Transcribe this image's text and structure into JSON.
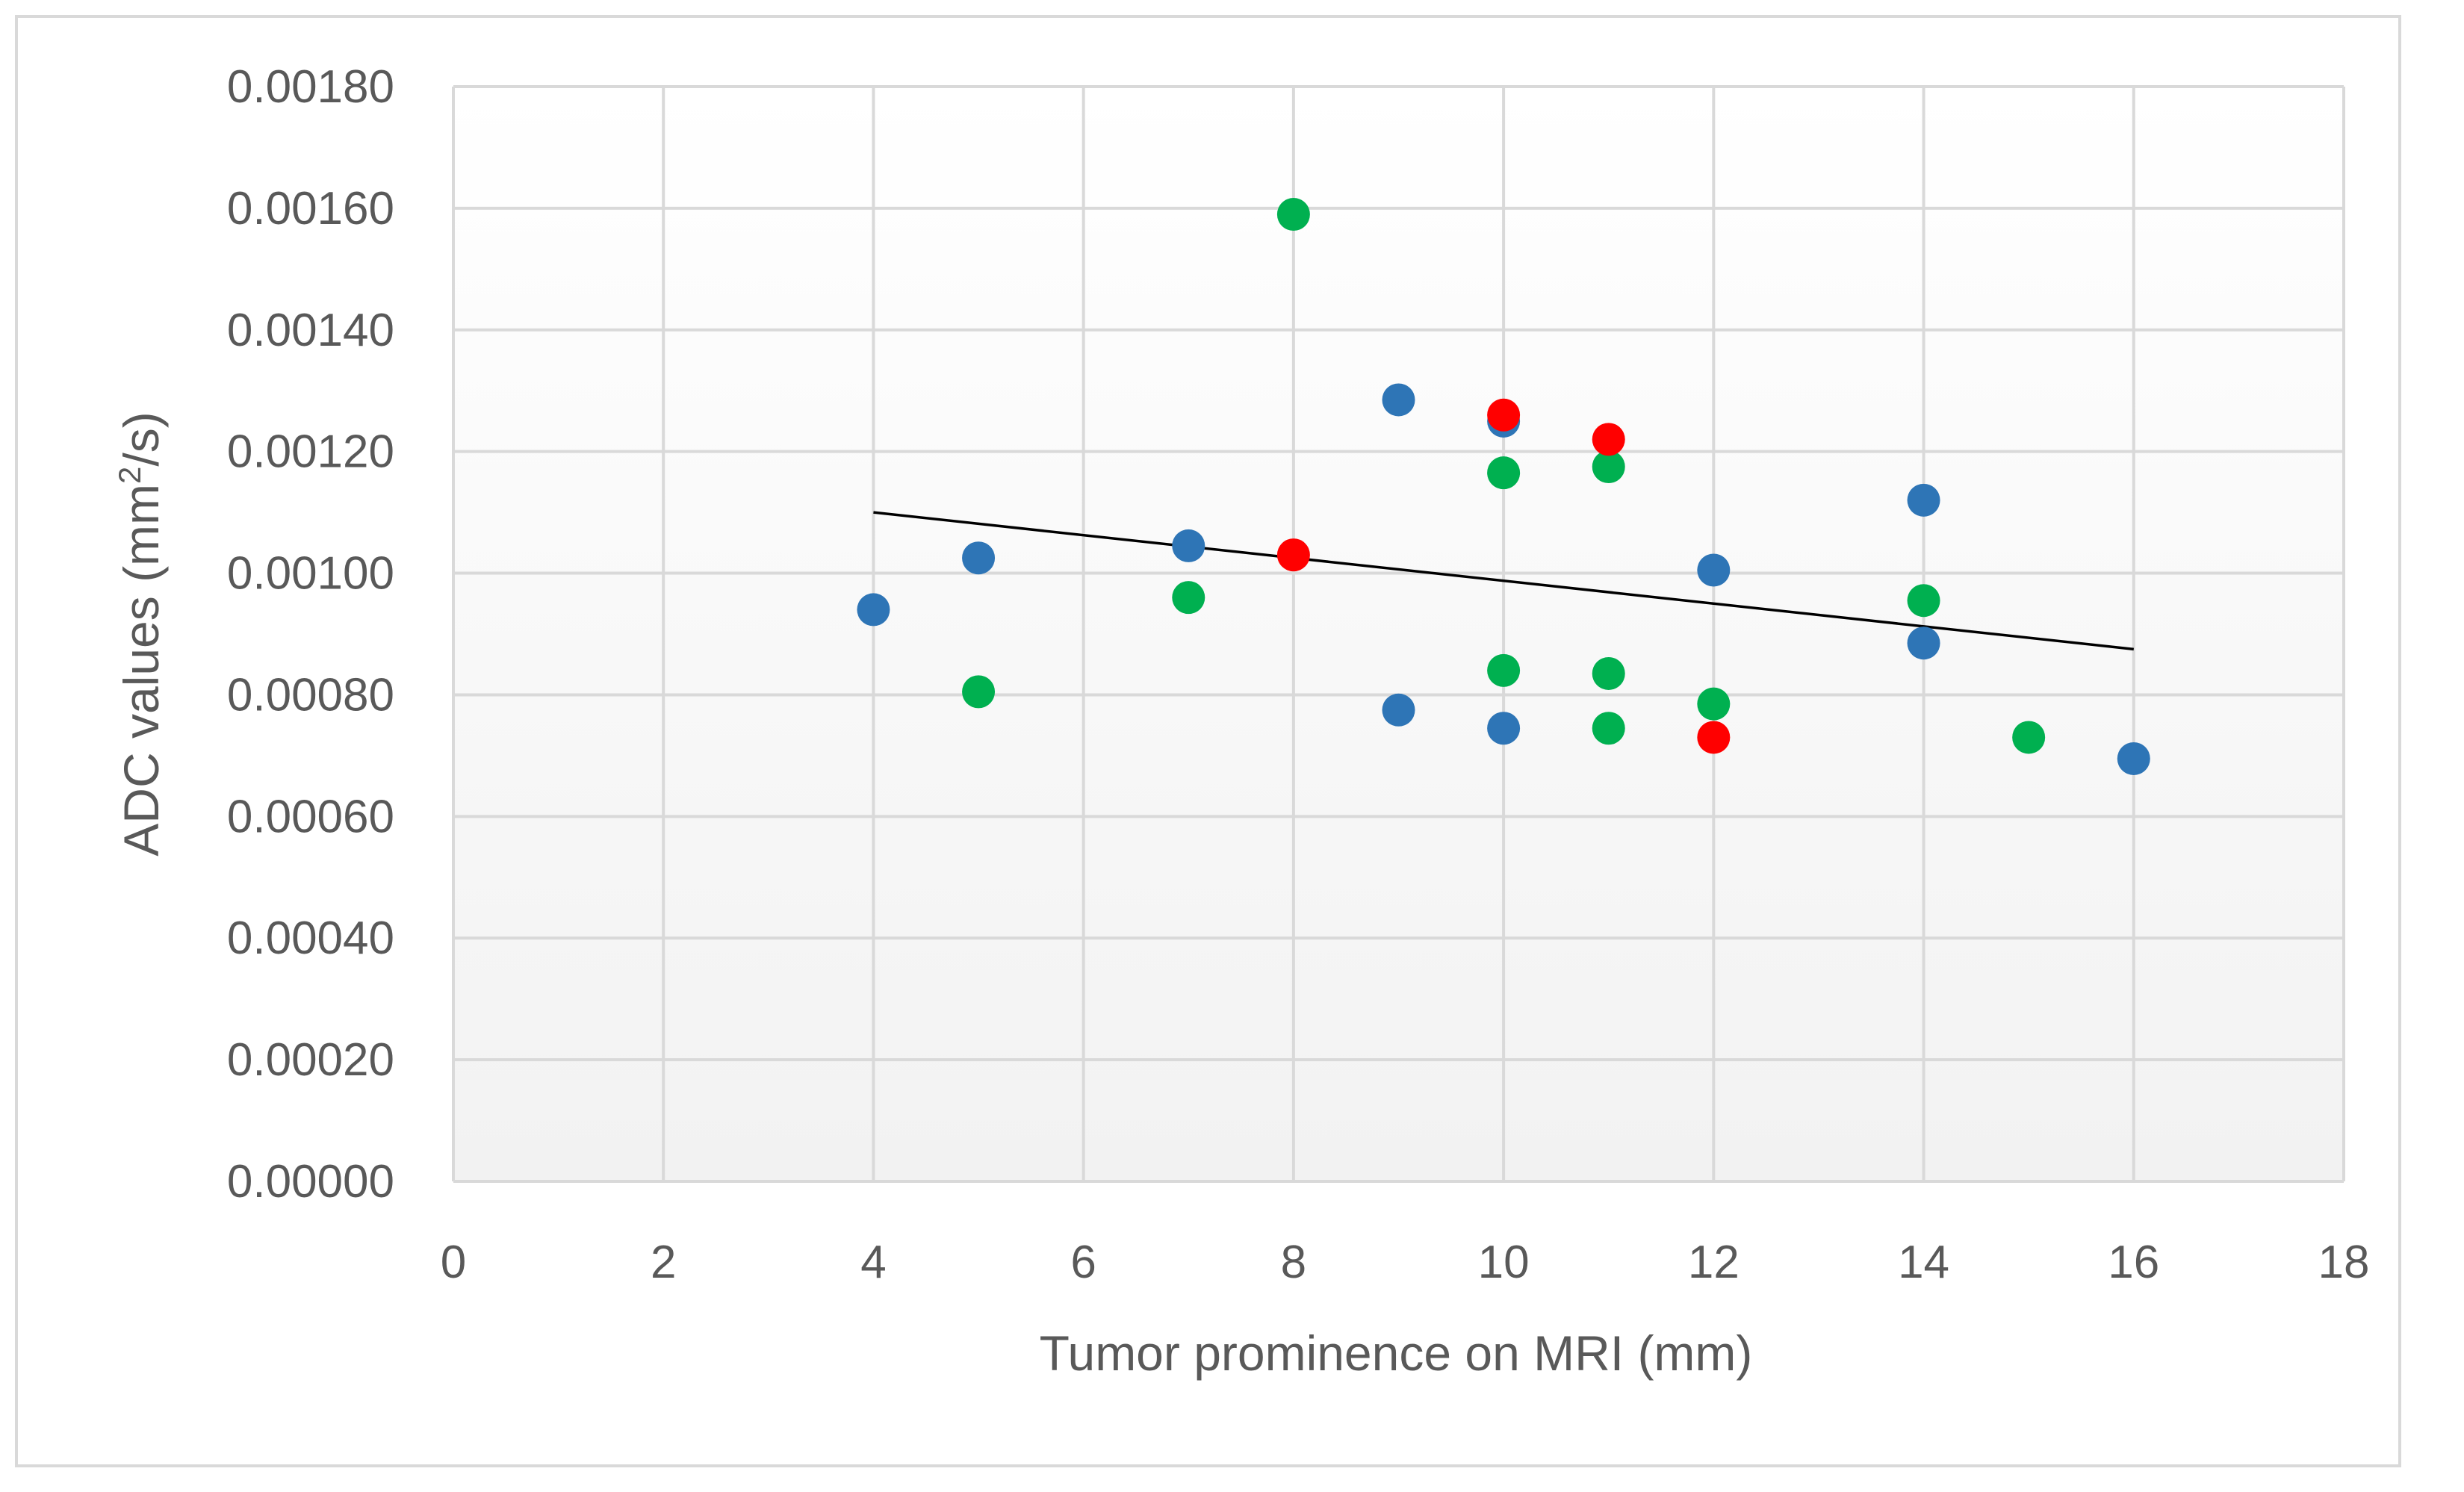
{
  "chart_data": {
    "type": "scatter",
    "title": "",
    "xlabel": "Tumor prominence on MRI (mm)",
    "ylabel_main": "ADC values (mm",
    "ylabel_sup": "2",
    "ylabel_tail": "/s)",
    "xlim": [
      0,
      18
    ],
    "ylim": [
      0,
      0.0018
    ],
    "x_ticks": [
      0,
      2,
      4,
      6,
      8,
      10,
      12,
      14,
      16,
      18
    ],
    "y_ticks": [
      0,
      0.0002,
      0.0004,
      0.0006,
      0.0008,
      0.001,
      0.0012,
      0.0014,
      0.0016,
      0.0018
    ],
    "y_tick_labels": [
      "0.00000",
      "0.00020",
      "0.00040",
      "0.00060",
      "0.00080",
      "0.00100",
      "0.00120",
      "0.00140",
      "0.00160",
      "0.00180"
    ],
    "grid": true,
    "series": [
      {
        "name": "blue",
        "color": "#2e75b6",
        "points": [
          [
            4,
            0.00094
          ],
          [
            5,
            0.001025
          ],
          [
            7,
            0.001045
          ],
          [
            9,
            0.001285
          ],
          [
            9,
            0.000775
          ],
          [
            10,
            0.00125
          ],
          [
            10,
            0.000745
          ],
          [
            12,
            0.001005
          ],
          [
            14,
            0.00112
          ],
          [
            14,
            0.000885
          ],
          [
            16,
            0.000695
          ]
        ]
      },
      {
        "name": "green",
        "color": "#00b050",
        "points": [
          [
            5,
            0.000805
          ],
          [
            7,
            0.00096
          ],
          [
            8,
            0.00159
          ],
          [
            10,
            0.001165
          ],
          [
            10,
            0.00084
          ],
          [
            11,
            0.001175
          ],
          [
            11,
            0.000835
          ],
          [
            11,
            0.000745
          ],
          [
            12,
            0.000785
          ],
          [
            14,
            0.000955
          ],
          [
            15,
            0.00073
          ]
        ]
      },
      {
        "name": "red",
        "color": "#ff0000",
        "points": [
          [
            8,
            0.00103
          ],
          [
            10,
            0.00126
          ],
          [
            11,
            0.00122
          ],
          [
            12,
            0.00073
          ]
        ]
      }
    ],
    "trendline": {
      "color": "#000000",
      "from": [
        4,
        0.0011
      ],
      "to": [
        16,
        0.000875
      ]
    }
  }
}
